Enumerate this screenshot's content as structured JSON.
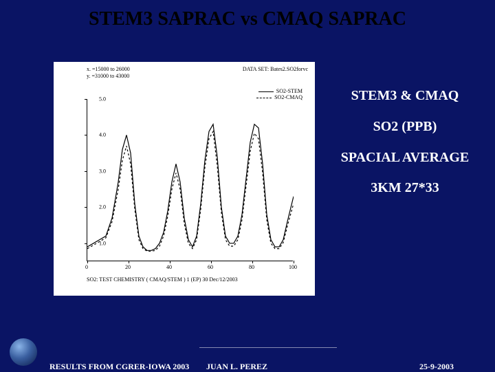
{
  "title": "STEM3 SAPRAC vs CMAQ SAPRAC",
  "chart": {
    "type": "line",
    "header_left_1": "x. =15000 to 26000",
    "header_left_2": "y. =31000 to 43000",
    "header_right": "DATA SET: Bates2.SO2forvc",
    "legend_1": "SO2-STEM",
    "legend_2": "SO2-CMAQ",
    "x_caption": "SO2: TEST CHEMISTRY ( CMAQ/STEM )   1 (EP)  30 Dec/12/2003",
    "background_color": "#ffffff",
    "axis_color": "#000000",
    "line1_color": "#000000",
    "line2_color": "#000000",
    "line1_dash": "",
    "line2_dash": "3,3",
    "line_width": 1.2,
    "label_fontsize": 8,
    "xlim": [
      0,
      100
    ],
    "ylim": [
      0.5,
      5.0
    ],
    "yticks": [
      {
        "v": 1.0,
        "label": "1.0"
      },
      {
        "v": 2.0,
        "label": "2.0"
      },
      {
        "v": 3.0,
        "label": "3.0"
      },
      {
        "v": 4.0,
        "label": "4.0"
      },
      {
        "v": 5.0,
        "label": "5.0"
      }
    ],
    "xticks": [
      {
        "v": 0,
        "label": "0"
      },
      {
        "v": 20,
        "label": "20"
      },
      {
        "v": 40,
        "label": "40"
      },
      {
        "v": 60,
        "label": "60"
      },
      {
        "v": 80,
        "label": "80"
      },
      {
        "v": 100,
        "label": "100"
      }
    ],
    "series1": {
      "x": [
        0,
        3,
        6,
        9,
        12,
        15,
        17,
        19,
        21,
        23,
        25,
        27,
        29,
        31,
        33,
        35,
        37,
        39,
        41,
        43,
        45,
        47,
        49,
        51,
        53,
        55,
        57,
        59,
        61,
        63,
        65,
        67,
        69,
        71,
        73,
        75,
        77,
        79,
        81,
        83,
        85,
        87,
        89,
        91,
        93,
        95,
        97,
        100
      ],
      "y": [
        0.9,
        1.0,
        1.1,
        1.2,
        1.7,
        2.7,
        3.6,
        4.0,
        3.5,
        2.1,
        1.2,
        0.9,
        0.8,
        0.8,
        0.85,
        1.0,
        1.3,
        1.9,
        2.7,
        3.2,
        2.7,
        1.7,
        1.1,
        0.9,
        1.2,
        2.1,
        3.3,
        4.1,
        4.3,
        3.4,
        2.0,
        1.2,
        1.0,
        1.0,
        1.2,
        1.8,
        2.8,
        3.8,
        4.3,
        4.2,
        3.2,
        1.8,
        1.1,
        0.9,
        0.9,
        1.1,
        1.6,
        2.3
      ]
    },
    "series2": {
      "x": [
        0,
        3,
        6,
        9,
        12,
        15,
        17,
        19,
        21,
        23,
        25,
        27,
        29,
        31,
        33,
        35,
        37,
        39,
        41,
        43,
        45,
        47,
        49,
        51,
        53,
        55,
        57,
        59,
        61,
        63,
        65,
        67,
        69,
        71,
        73,
        75,
        77,
        79,
        81,
        83,
        85,
        87,
        89,
        91,
        93,
        95,
        97,
        100
      ],
      "y": [
        0.85,
        0.95,
        1.05,
        1.15,
        1.6,
        2.5,
        3.3,
        3.7,
        3.2,
        1.95,
        1.1,
        0.85,
        0.78,
        0.78,
        0.8,
        0.92,
        1.2,
        1.75,
        2.5,
        2.95,
        2.5,
        1.55,
        1.0,
        0.85,
        1.1,
        1.95,
        3.1,
        3.9,
        4.1,
        3.15,
        1.85,
        1.1,
        0.92,
        0.92,
        1.1,
        1.65,
        2.6,
        3.55,
        4.05,
        3.9,
        2.95,
        1.65,
        1.0,
        0.85,
        0.85,
        1.02,
        1.48,
        2.1
      ]
    }
  },
  "side": {
    "l1": "STEM3 & CMAQ",
    "l2": "SO2 (PPB)",
    "l3": "SPACIAL AVERAGE",
    "l4": "3KM 27*33"
  },
  "footer": {
    "left": "RESULTS FROM CGRER-IOWA 2003",
    "mid": "JUAN L. PEREZ",
    "right": "25-9-2003"
  },
  "colors": {
    "slide_bg": "#0a1464",
    "text_light": "#ffffff",
    "text_dark": "#000000"
  }
}
